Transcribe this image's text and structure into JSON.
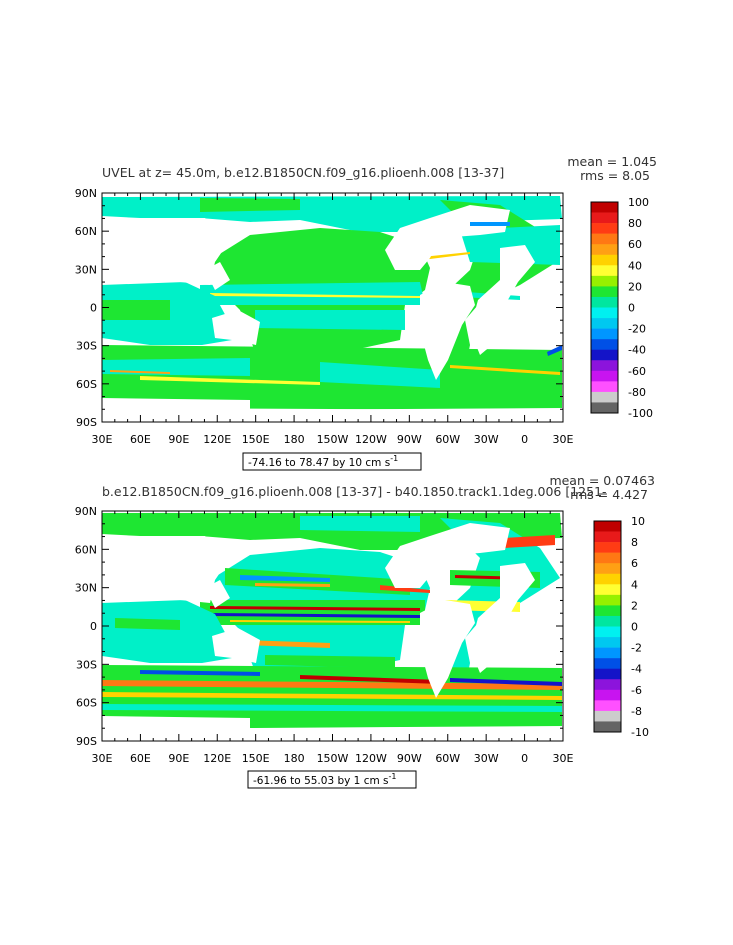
{
  "panels": [
    {
      "title": "UVEL at z=  45.0m, b.e12.B1850CN.f09_g16.plioenh.008 [13-37]",
      "mean": "mean = 1.045",
      "rms": "rms = 8.05",
      "range_text": "-74.16 to 78.47 by 10 cm s",
      "range_exp": "-1",
      "lat_labels": [
        "90N",
        "60N",
        "30N",
        "0",
        "30S",
        "60S",
        "90S"
      ],
      "lon_labels": [
        "30E",
        "60E",
        "90E",
        "120E",
        "150E",
        "180",
        "150W",
        "120W",
        "90W",
        "60W",
        "30W",
        "0",
        "30E"
      ],
      "colorbar_labels": [
        "100",
        "80",
        "60",
        "40",
        "20",
        "0",
        "-20",
        "-40",
        "-60",
        "-80",
        "-100"
      ]
    },
    {
      "title": "b.e12.B1850CN.f09_g16.plioenh.008 [13-37] - b40.1850.track1.1deg.006 [1251-",
      "mean": "mean = 0.07463",
      "rms": "rms = 4.427",
      "range_text": "-61.96 to 55.03 by 1 cm s",
      "range_exp": "-1",
      "lat_labels": [
        "90N",
        "60N",
        "30N",
        "0",
        "30S",
        "60S",
        "90S"
      ],
      "lon_labels": [
        "30E",
        "60E",
        "90E",
        "120E",
        "150E",
        "180",
        "150W",
        "120W",
        "90W",
        "60W",
        "30W",
        "0",
        "30E"
      ],
      "colorbar_labels": [
        "10",
        "8",
        "6",
        "4",
        "2",
        "0",
        "-2",
        "-4",
        "-6",
        "-8",
        "-10"
      ]
    }
  ],
  "colorbar_colors": [
    "#c00000",
    "#e81a1a",
    "#ff3c14",
    "#ff7814",
    "#ffa014",
    "#ffd200",
    "#ffff32",
    "#96f000",
    "#1ee632",
    "#00e6a0",
    "#00f0f0",
    "#00c8f0",
    "#0096ff",
    "#0050e6",
    "#1414c8",
    "#8c14dc",
    "#c814f0",
    "#ff50ff",
    "#cccccc",
    "#646464"
  ],
  "colors": {
    "land": "#ffffff",
    "ocean_base": "#1ee632",
    "ocean_alt": "#00f0c8"
  }
}
